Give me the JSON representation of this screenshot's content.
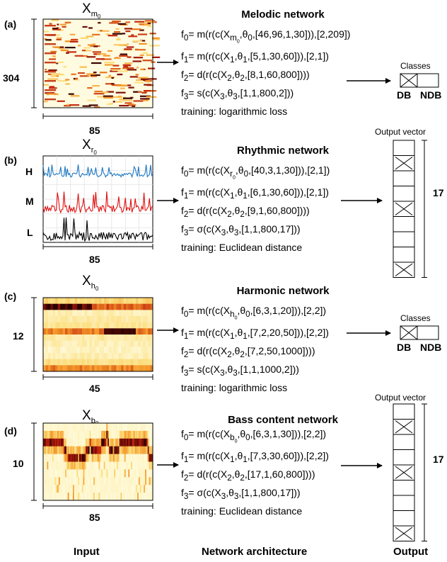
{
  "panels": [
    {
      "letter": "(a)",
      "input_var": "X",
      "input_sub": "m",
      "input_subsub": "0",
      "height_label": "304",
      "width_label": "85",
      "network_title": "Melodic network",
      "formulas": [
        "f₀= m(r(c(X_{m0},θ₀,[46,96,1,30])),[2,209])",
        "f₁= m(r(c(X₁,θ₁,[5,1,30,60])),[2,1])",
        "f₂= d(r(c(X₂,θ₂,[8,1,60,800])))",
        "f₃= s(c(X₃,θ₃,[1,1,800,2]))"
      ],
      "training": "training: logarithmic loss",
      "output": {
        "type": "classes",
        "label": "Classes",
        "tags": [
          "DB",
          "NDB"
        ]
      }
    },
    {
      "letter": "(b)",
      "input_var": "X",
      "input_sub": "r",
      "input_subsub": "0",
      "row_labels": [
        "H",
        "M",
        "L"
      ],
      "width_label": "85",
      "network_title": "Rhythmic network",
      "formulas": [
        "f₀= m(r(c(X_{r0},θ₀,[40,3,1,30])),[2,1])",
        "f₁= m(r(c(X₁,θ₁,[6,1,30,60])),[2,1])",
        "f₂= d(r(c(X₂,θ₂,[9,1,60,800])))",
        "f₃= σ(c(X₃,θ₃,[1,1,800,17]))"
      ],
      "training": "training: Euclidean distance",
      "output": {
        "type": "vector",
        "label": "Output vector",
        "size": "17",
        "ellipsis": "⋮"
      }
    },
    {
      "letter": "(c)",
      "input_var": "X",
      "input_sub": "h",
      "input_subsub": "0",
      "height_label": "12",
      "width_label": "45",
      "network_title": "Harmonic network",
      "formulas": [
        "f₀= m(r(c(X_{h0},θ₀,[6,3,1,20])),[2,2])",
        "f₁= m(r(c(X₁,θ₁,[7,2,20,50])),[2,2])",
        "f₂= d(r(c(X₂,θ₂,[7,2,50,1000])))",
        "f₃= s(c(X₃,θ₃,[1,1,1000,2]))"
      ],
      "training": "training: logarithmic loss",
      "output": {
        "type": "classes",
        "label": "Classes",
        "tags": [
          "DB",
          "NDB"
        ]
      }
    },
    {
      "letter": "(d)",
      "input_var": "X",
      "input_sub": "b",
      "input_subsub": "0",
      "height_label": "10",
      "width_label": "85",
      "network_title": "Bass content network",
      "formulas": [
        "f₀= m(r(c(X_{b0},θ₀,[6,3,1,30])),[2,2])",
        "f₁= m(r(c(X₁,θ₁,[7,3,30,60])),[2,2])",
        "f₂= d(r(c(X₂,θ₂,[17,1,60,800])))",
        "f₃= σ(c(X₃,θ₃,[1,1,800,17]))"
      ],
      "training": "training: Euclidean distance",
      "output": {
        "type": "vector",
        "label": "Output vector",
        "size": "17",
        "ellipsis": "⋮"
      }
    }
  ],
  "footer": {
    "input": "Input",
    "architecture": "Network architecture",
    "output": "Output"
  },
  "colors": {
    "heat_low": "#fffbe0",
    "heat_mid": "#f6b02c",
    "heat_high": "#b4100a",
    "heat_max": "#300000",
    "rhythm_h": "#1f78c1",
    "rhythm_m": "#e01010",
    "rhythm_l": "#000000"
  }
}
